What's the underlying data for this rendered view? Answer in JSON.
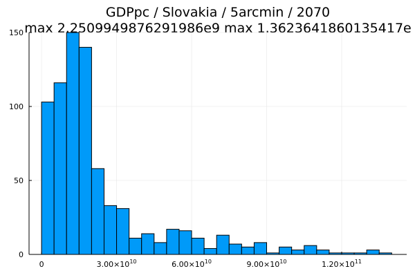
{
  "chart_data": {
    "type": "bar",
    "title": "GDPpc / Slovakia / 5arcmin / 2070",
    "subtitle": "max 2.2509949876291986e9  max 1.3623641860135417e",
    "xlabel": "",
    "ylabel": "",
    "bin_width": 5000000000,
    "bin_start": 0,
    "values": [
      103,
      116,
      150,
      140,
      58,
      33,
      31,
      11,
      14,
      8,
      17,
      16,
      11,
      4,
      13,
      7,
      5,
      8,
      1,
      5,
      3,
      6,
      3,
      1,
      1,
      1,
      3,
      1
    ],
    "xlim": [
      -5000000000,
      146000000000
    ],
    "ylim": [
      0,
      150
    ],
    "x_ticks": [
      {
        "value": 0,
        "mantissa": "0",
        "exponent": ""
      },
      {
        "value": 30000000000,
        "mantissa": "3.00×10",
        "exponent": "10"
      },
      {
        "value": 60000000000,
        "mantissa": "6.00×10",
        "exponent": "10"
      },
      {
        "value": 90000000000,
        "mantissa": "9.00×10",
        "exponent": "10"
      },
      {
        "value": 120000000000,
        "mantissa": "1.20×10",
        "exponent": "11"
      }
    ],
    "y_ticks": [
      0,
      50,
      100,
      150
    ],
    "grid": true,
    "legend": "none",
    "colors": {
      "bar_fill": "#009af9",
      "bar_stroke": "#000000",
      "grid": "#e6e6e6",
      "axis": "#000000"
    }
  }
}
